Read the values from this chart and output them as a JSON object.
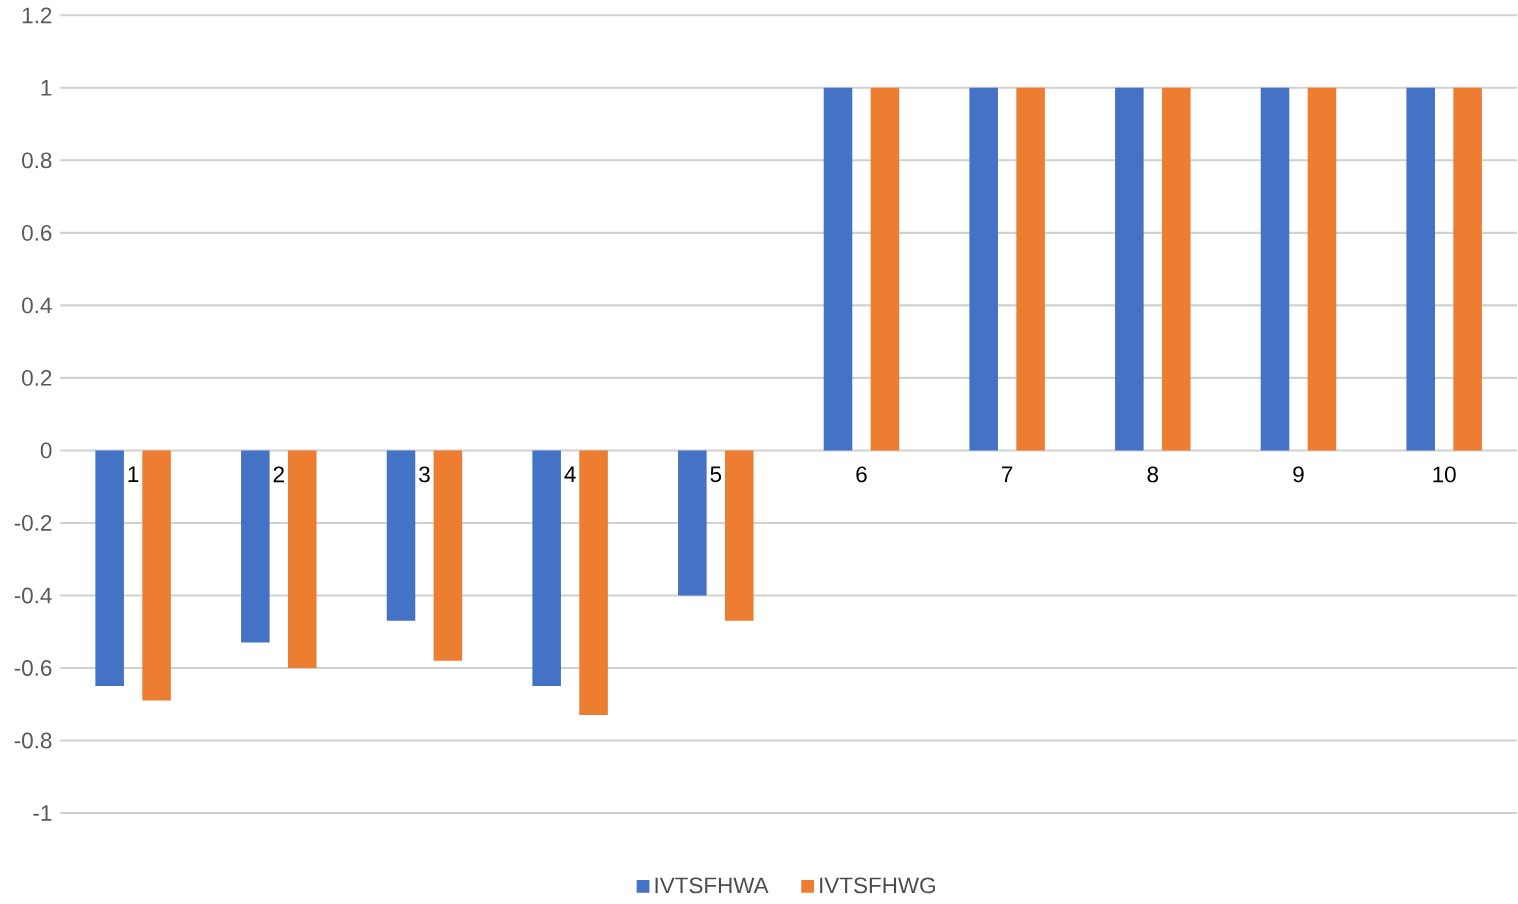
{
  "chart_data": {
    "type": "bar",
    "categories": [
      "1",
      "2",
      "3",
      "4",
      "5",
      "6",
      "7",
      "8",
      "9",
      "10"
    ],
    "series": [
      {
        "name": "IVTSFHWA",
        "color": "#4472c4",
        "values": [
          -0.65,
          -0.53,
          -0.47,
          -0.65,
          -0.4,
          1,
          1,
          1,
          1,
          1
        ]
      },
      {
        "name": "IVTSFHWG",
        "color": "#ed7d31",
        "values": [
          -0.69,
          -0.6,
          -0.58,
          -0.73,
          -0.47,
          1,
          1,
          1,
          1,
          1
        ]
      }
    ],
    "ylim": [
      -1,
      1.2
    ],
    "yticks": [
      -1,
      -0.8,
      -0.6,
      -0.4,
      -0.2,
      0,
      0.2,
      0.4,
      0.6,
      0.8,
      1,
      1.2
    ],
    "grid": "y",
    "legend": "bottom"
  }
}
